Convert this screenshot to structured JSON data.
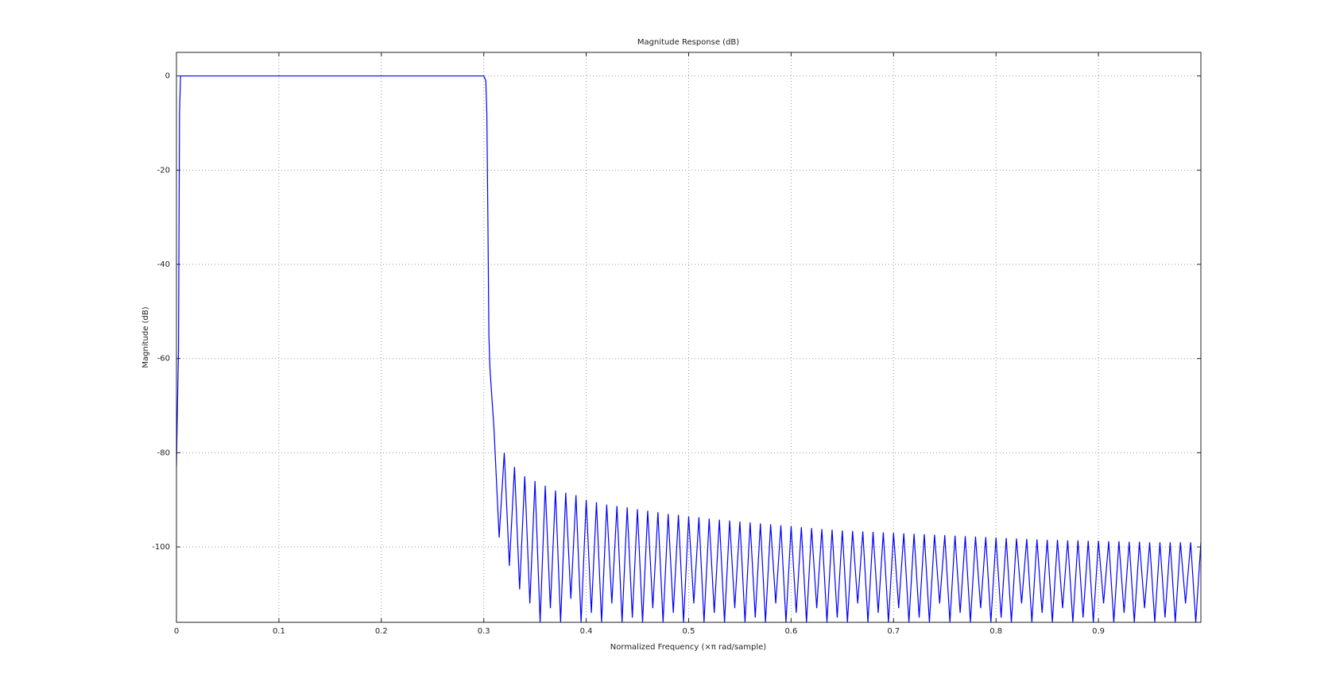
{
  "chart_data": {
    "type": "line",
    "title": "Magnitude Response (dB)",
    "x_label": "Normalized Frequency (×π rad/sample)",
    "y_label": "Magnitude (dB)",
    "color": "#0000ff",
    "grid": true,
    "xlim": [
      0,
      1
    ],
    "ylim": [
      -116,
      5
    ],
    "xticks": [
      0,
      0.1,
      0.2,
      0.3,
      0.4,
      0.5,
      0.6,
      0.7,
      0.8,
      0.9
    ],
    "yticks": [
      -100,
      -80,
      -60,
      -40,
      -20,
      0
    ],
    "x": [
      0,
      0.001,
      0.002,
      0.003,
      0.004,
      0.005,
      0.3,
      0.302,
      0.303,
      0.304,
      0.305,
      0.306,
      0.31,
      0.315,
      0.32,
      0.325,
      0.33,
      0.335,
      0.34,
      0.345,
      0.35,
      0.355,
      0.36,
      0.365,
      0.37,
      0.375,
      0.38,
      0.385,
      0.39,
      0.395,
      0.4,
      0.405,
      0.41,
      0.415,
      0.42,
      0.425,
      0.43,
      0.435,
      0.44,
      0.445,
      0.45,
      0.455,
      0.46,
      0.465,
      0.47,
      0.475,
      0.48,
      0.485,
      0.49,
      0.495,
      0.5,
      0.505,
      0.51,
      0.515,
      0.52,
      0.525,
      0.53,
      0.535,
      0.54,
      0.545,
      0.55,
      0.555,
      0.56,
      0.565,
      0.57,
      0.575,
      0.58,
      0.585,
      0.59,
      0.595,
      0.6,
      0.605,
      0.61,
      0.615,
      0.62,
      0.625,
      0.63,
      0.635,
      0.64,
      0.645,
      0.65,
      0.655,
      0.66,
      0.665,
      0.67,
      0.675,
      0.68,
      0.685,
      0.69,
      0.695,
      0.7,
      0.705,
      0.71,
      0.715,
      0.72,
      0.725,
      0.73,
      0.735,
      0.74,
      0.745,
      0.75,
      0.755,
      0.76,
      0.765,
      0.77,
      0.775,
      0.78,
      0.785,
      0.79,
      0.795,
      0.8,
      0.805,
      0.81,
      0.815,
      0.82,
      0.825,
      0.83,
      0.835,
      0.84,
      0.845,
      0.85,
      0.855,
      0.86,
      0.865,
      0.87,
      0.875,
      0.88,
      0.885,
      0.89,
      0.895,
      0.9,
      0.905,
      0.91,
      0.915,
      0.92,
      0.925,
      0.93,
      0.935,
      0.94,
      0.945,
      0.95,
      0.955,
      0.96,
      0.965,
      0.97,
      0.975,
      0.98,
      0.985,
      0.99,
      0.995,
      1.0
    ],
    "values": [
      -83,
      -70,
      -58,
      -8,
      0,
      0,
      0,
      -1,
      -8,
      -30,
      -55,
      -62,
      -75,
      -98,
      -80,
      -104,
      -83,
      -109,
      -85,
      -112,
      -86,
      -116,
      -87,
      -113,
      -88,
      -116,
      -88.5,
      -111,
      -89,
      -116,
      -90,
      -114,
      -90.5,
      -116,
      -91,
      -112,
      -91.3,
      -116,
      -91.6,
      -115,
      -92,
      -116,
      -92.3,
      -113,
      -92.6,
      -116,
      -93,
      -114,
      -93.2,
      -116,
      -93.5,
      -112,
      -93.7,
      -116,
      -94,
      -114,
      -94.2,
      -116,
      -94.4,
      -113,
      -94.6,
      -116,
      -94.8,
      -115,
      -95,
      -116,
      -95.2,
      -112,
      -95.4,
      -116,
      -95.6,
      -114,
      -95.8,
      -116,
      -96,
      -113,
      -96.2,
      -116,
      -96.3,
      -115,
      -96.5,
      -116,
      -96.6,
      -112,
      -96.7,
      -116,
      -96.8,
      -114,
      -96.9,
      -116,
      -97,
      -113,
      -97.1,
      -116,
      -97.2,
      -115,
      -97.3,
      -116,
      -97.4,
      -112,
      -97.5,
      -116,
      -97.6,
      -114,
      -97.7,
      -116,
      -97.8,
      -113,
      -97.9,
      -116,
      -98,
      -115,
      -98.1,
      -116,
      -98.2,
      -112,
      -98.3,
      -116,
      -98.4,
      -114,
      -98.5,
      -116,
      -98.5,
      -113,
      -98.6,
      -116,
      -98.6,
      -115,
      -98.7,
      -116,
      -98.7,
      -112,
      -98.8,
      -116,
      -98.8,
      -114,
      -98.9,
      -116,
      -98.9,
      -113,
      -99,
      -116,
      -99,
      -115,
      -99,
      -116,
      -99,
      -112,
      -99,
      -116,
      -99
    ]
  }
}
